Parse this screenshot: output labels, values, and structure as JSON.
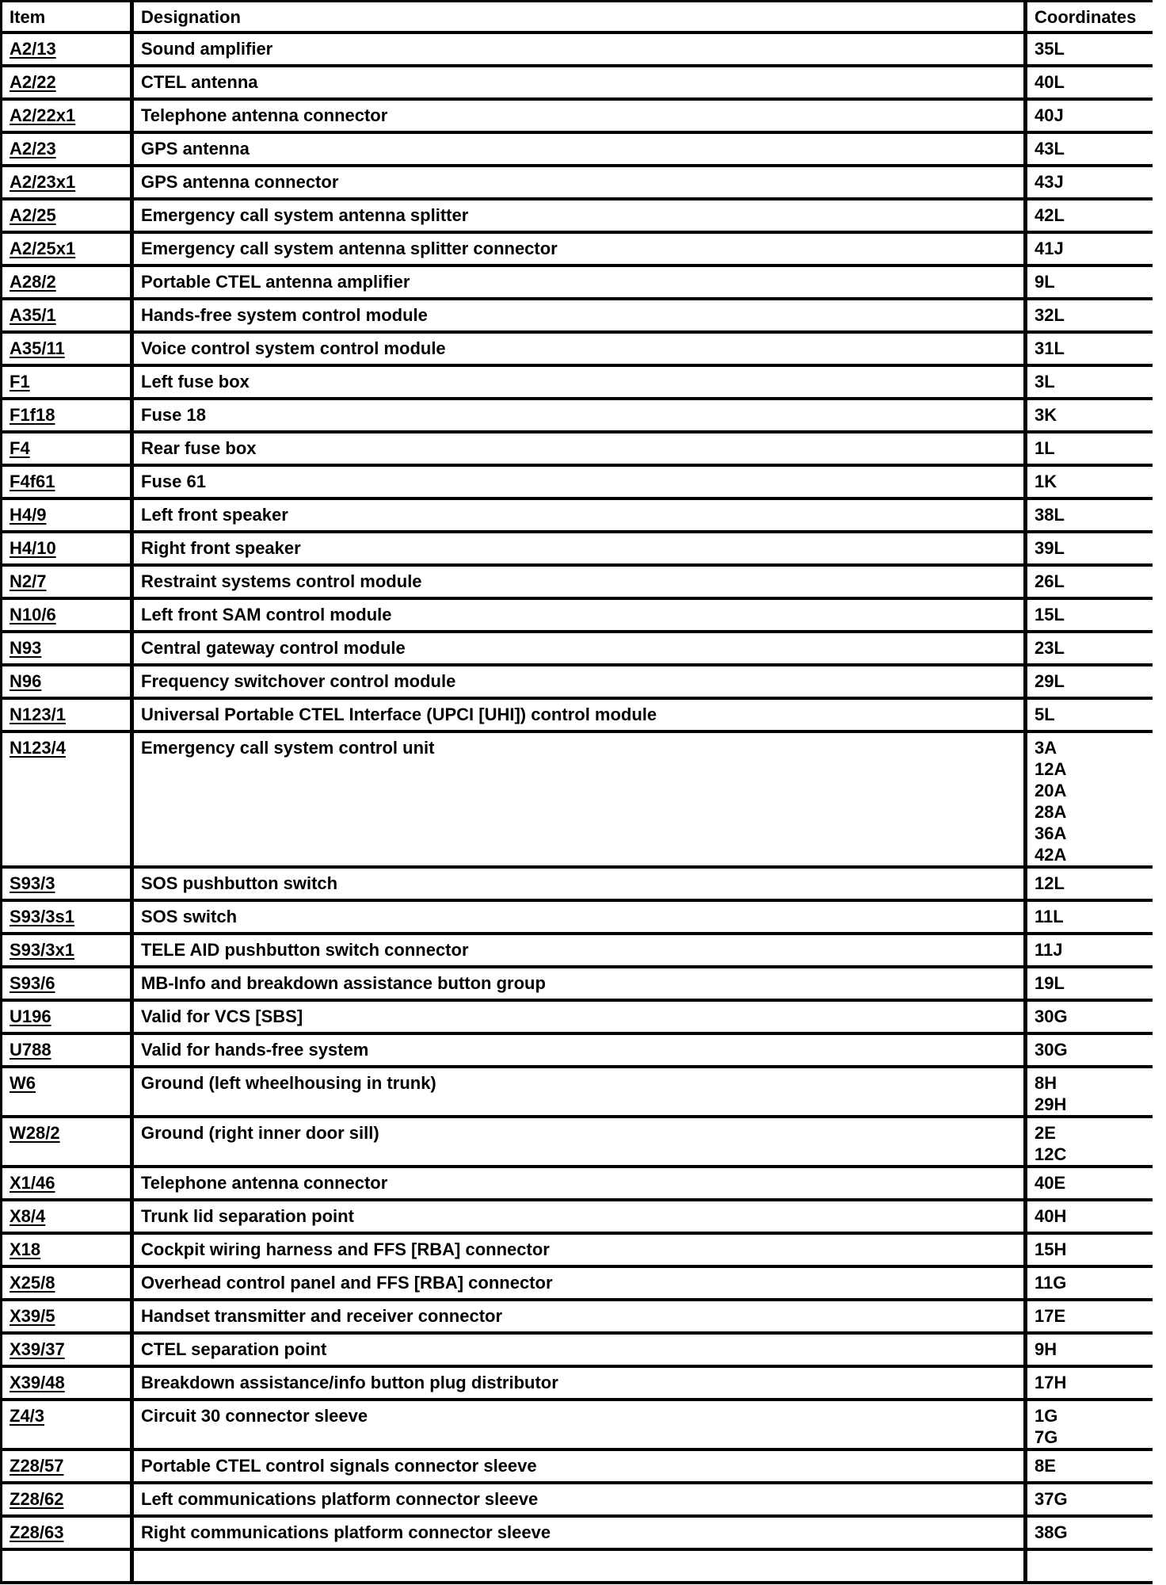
{
  "colors": {
    "text": "#000000",
    "border": "#000000",
    "background": "#ffffff"
  },
  "table": {
    "headers": {
      "item": "Item",
      "designation": "Designation",
      "coordinates": "Coordinates"
    },
    "rows": [
      {
        "item": "A2/13",
        "designation": "Sound amplifier",
        "coordinates": "35L"
      },
      {
        "item": "A2/22",
        "designation": "CTEL antenna",
        "coordinates": "40L"
      },
      {
        "item": "A2/22x1",
        "designation": "Telephone antenna connector",
        "coordinates": "40J"
      },
      {
        "item": "A2/23",
        "designation": "GPS antenna",
        "coordinates": "43L"
      },
      {
        "item": "A2/23x1",
        "designation": "GPS antenna connector",
        "coordinates": "43J"
      },
      {
        "item": "A2/25",
        "designation": "Emergency call system antenna splitter",
        "coordinates": "42L"
      },
      {
        "item": "A2/25x1",
        "designation": "Emergency call system antenna splitter connector",
        "coordinates": "41J"
      },
      {
        "item": "A28/2",
        "designation": "Portable CTEL antenna amplifier",
        "coordinates": "9L"
      },
      {
        "item": "A35/1",
        "designation": "Hands-free system control module",
        "coordinates": "32L"
      },
      {
        "item": "A35/11",
        "designation": "Voice control system control module",
        "coordinates": "31L"
      },
      {
        "item": "F1",
        "designation": "Left fuse box",
        "coordinates": "3L"
      },
      {
        "item": "F1f18",
        "designation": "Fuse 18",
        "coordinates": "3K"
      },
      {
        "item": "F4",
        "designation": "Rear fuse box",
        "coordinates": "1L"
      },
      {
        "item": "F4f61",
        "designation": "Fuse 61",
        "coordinates": "1K"
      },
      {
        "item": "H4/9",
        "designation": "Left front speaker",
        "coordinates": "38L"
      },
      {
        "item": "H4/10",
        "designation": "Right front speaker",
        "coordinates": "39L"
      },
      {
        "item": "N2/7",
        "designation": "Restraint systems control module",
        "coordinates": "26L"
      },
      {
        "item": "N10/6",
        "designation": "Left front SAM control module",
        "coordinates": "15L"
      },
      {
        "item": "N93",
        "designation": "Central gateway control module",
        "coordinates": "23L"
      },
      {
        "item": "N96",
        "designation": "Frequency switchover control module",
        "coordinates": "29L"
      },
      {
        "item": "N123/1",
        "designation": "Universal Portable CTEL Interface (UPCI [UHI]) control module",
        "coordinates": "5L"
      },
      {
        "item": "N123/4",
        "designation": "Emergency call system control unit",
        "coordinates": "3A\n12A\n20A\n28A\n36A\n42A"
      },
      {
        "item": "S93/3",
        "designation": "SOS pushbutton switch",
        "coordinates": "12L"
      },
      {
        "item": "S93/3s1",
        "designation": "SOS switch",
        "coordinates": "11L"
      },
      {
        "item": "S93/3x1",
        "designation": "TELE AID pushbutton switch connector",
        "coordinates": "11J"
      },
      {
        "item": "S93/6",
        "designation": "MB-Info and breakdown assistance button group",
        "coordinates": "19L"
      },
      {
        "item": "U196",
        "designation": "Valid for VCS [SBS]",
        "coordinates": "30G"
      },
      {
        "item": "U788",
        "designation": "Valid for hands-free system",
        "coordinates": "30G"
      },
      {
        "item": "W6",
        "designation": "Ground (left wheelhousing in trunk)",
        "coordinates": "8H\n29H"
      },
      {
        "item": "W28/2",
        "designation": "Ground (right inner door sill)",
        "coordinates": "2E\n12C"
      },
      {
        "item": "X1/46",
        "designation": "Telephone antenna connector",
        "coordinates": "40E"
      },
      {
        "item": "X8/4",
        "designation": "Trunk lid separation point",
        "coordinates": "40H"
      },
      {
        "item": "X18",
        "designation": "Cockpit wiring harness and FFS [RBA] connector",
        "coordinates": "15H"
      },
      {
        "item": "X25/8",
        "designation": "Overhead control panel and FFS [RBA] connector",
        "coordinates": "11G"
      },
      {
        "item": "X39/5",
        "designation": "Handset transmitter and receiver connector",
        "coordinates": "17E"
      },
      {
        "item": "X39/37",
        "designation": "CTEL separation point",
        "coordinates": "9H"
      },
      {
        "item": "X39/48",
        "designation": "Breakdown assistance/info button plug distributor",
        "coordinates": "17H"
      },
      {
        "item": "Z4/3",
        "designation": "Circuit 30 connector sleeve",
        "coordinates": "1G\n7G"
      },
      {
        "item": "Z28/57",
        "designation": "Portable CTEL control signals connector sleeve",
        "coordinates": "8E"
      },
      {
        "item": "Z28/62",
        "designation": "Left communications platform connector sleeve",
        "coordinates": "37G"
      },
      {
        "item": "Z28/63",
        "designation": "Right communications platform connector sleeve",
        "coordinates": "38G"
      },
      {
        "item": "",
        "designation": "",
        "coordinates": ""
      }
    ]
  }
}
